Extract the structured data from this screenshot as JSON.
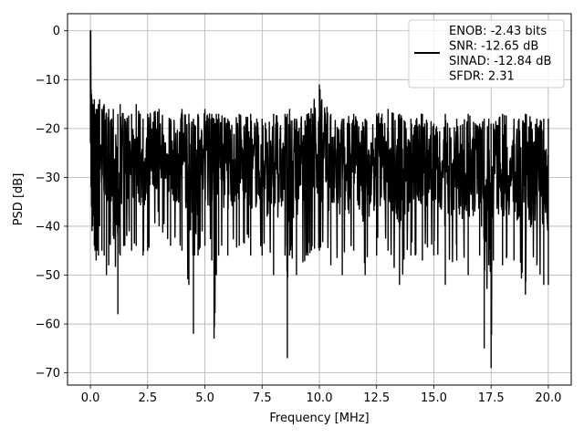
{
  "chart_data": {
    "type": "line",
    "title": "",
    "xlabel": "Frequency [MHz]",
    "ylabel": "PSD [dB]",
    "xlim": [
      -1.0,
      21.0
    ],
    "ylim": [
      -72.5,
      3.5
    ],
    "xticks": [
      0.0,
      2.5,
      5.0,
      7.5,
      10.0,
      12.5,
      15.0,
      17.5,
      20.0
    ],
    "xtick_labels": [
      "0.0",
      "2.5",
      "5.0",
      "7.5",
      "10.0",
      "12.5",
      "15.0",
      "17.5",
      "20.0"
    ],
    "yticks": [
      0,
      -10,
      -20,
      -30,
      -40,
      -50,
      -60,
      -70
    ],
    "ytick_labels": [
      "0",
      "−10",
      "−20",
      "−30",
      "−40",
      "−50",
      "−60",
      "−70"
    ],
    "grid": true,
    "legend_position": "top-right",
    "series": [
      {
        "name_lines": [
          "ENOB: -2.43 bits",
          "SNR: -12.65 dB",
          "SINAD: -12.84 dB",
          "SFDR: 2.31"
        ],
        "color": "#000000",
        "x": [
          0.0,
          0.01,
          0.02,
          0.03,
          0.05,
          0.07,
          0.1,
          0.13,
          0.17,
          0.2,
          0.25,
          0.3,
          0.35,
          0.4,
          0.5,
          0.6,
          0.7,
          0.8,
          1.0,
          1.2,
          1.3,
          1.5,
          1.8,
          2.0,
          2.3,
          2.5,
          3.0,
          3.5,
          4.0,
          4.3,
          4.5,
          4.7,
          5.0,
          5.3,
          5.4,
          5.5,
          5.6,
          6.0,
          6.5,
          7.0,
          7.5,
          8.0,
          8.5,
          8.6,
          8.7,
          9.0,
          9.5,
          10.0,
          10.5,
          11.0,
          11.5,
          12.0,
          12.5,
          13.0,
          13.5,
          14.0,
          14.5,
          15.0,
          15.5,
          16.0,
          16.5,
          17.0,
          17.2,
          17.4,
          17.5,
          17.6,
          18.0,
          18.5,
          19.0,
          19.5,
          19.8,
          20.0
        ],
        "upper": [
          0,
          -7,
          -10,
          -12,
          -13,
          -14,
          -15,
          -15,
          -14,
          -17,
          -16,
          -16,
          -15,
          -14,
          -16,
          -15,
          -17,
          -16,
          -16,
          -17,
          -15,
          -18,
          -17,
          -15,
          -18,
          -17,
          -16,
          -18,
          -16,
          -17,
          -18,
          -17,
          -16,
          -17,
          -18,
          -17,
          -17,
          -18,
          -17,
          -17,
          -18,
          -17,
          -17,
          -17,
          -16,
          -18,
          -17,
          -11,
          -17,
          -18,
          -17,
          -18,
          -17,
          -16,
          -17,
          -18,
          -17,
          -19,
          -17,
          -18,
          -17,
          -19,
          -18,
          -18,
          -19,
          -19,
          -17,
          -18,
          -17,
          -18,
          -18,
          -18
        ],
        "lower": [
          -23,
          -12,
          -20,
          -32,
          -36,
          -41,
          -40,
          -38,
          -44,
          -45,
          -47,
          -45,
          -46,
          -40,
          -45,
          -46,
          -50,
          -48,
          -42,
          -58,
          -46,
          -44,
          -45,
          -44,
          -46,
          -45,
          -40,
          -44,
          -45,
          -52,
          -62,
          -46,
          -44,
          -47,
          -63,
          -50,
          -46,
          -46,
          -44,
          -46,
          -46,
          -50,
          -46,
          -67,
          -46,
          -50,
          -46,
          -45,
          -48,
          -50,
          -45,
          -50,
          -46,
          -45,
          -52,
          -46,
          -47,
          -46,
          -52,
          -47,
          -50,
          -46,
          -65,
          -48,
          -69,
          -47,
          -48,
          -47,
          -54,
          -48,
          -52,
          -52
        ]
      }
    ]
  }
}
